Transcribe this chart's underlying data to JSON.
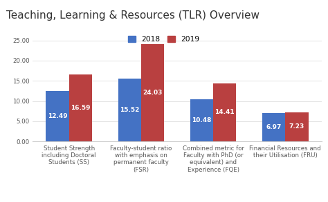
{
  "title": "Teaching, Learning & Resources (TLR) Overview",
  "categories": [
    "Student Strength\nincluding Doctoral\nStudents (SS)",
    "Faculty-student ratio\nwith emphasis on\npermanent faculty\n(FSR)",
    "Combined metric for\nFaculty with PhD (or\nequivalent) and\nExperience (FQE)",
    "Financial Resources and\ntheir Utilisation (FRU)"
  ],
  "values_2018": [
    12.49,
    15.52,
    10.48,
    6.97
  ],
  "values_2019": [
    16.59,
    24.03,
    14.41,
    7.23
  ],
  "color_2018": "#4472C4",
  "color_2019": "#B94040",
  "ylim": [
    0,
    25
  ],
  "yticks": [
    0.0,
    5.0,
    10.0,
    15.0,
    20.0,
    25.0
  ],
  "legend_labels": [
    "2018",
    "2019"
  ],
  "bar_width": 0.32,
  "label_fontsize": 6.5,
  "title_fontsize": 11,
  "tick_fontsize": 6.2,
  "background_color": "#ffffff"
}
